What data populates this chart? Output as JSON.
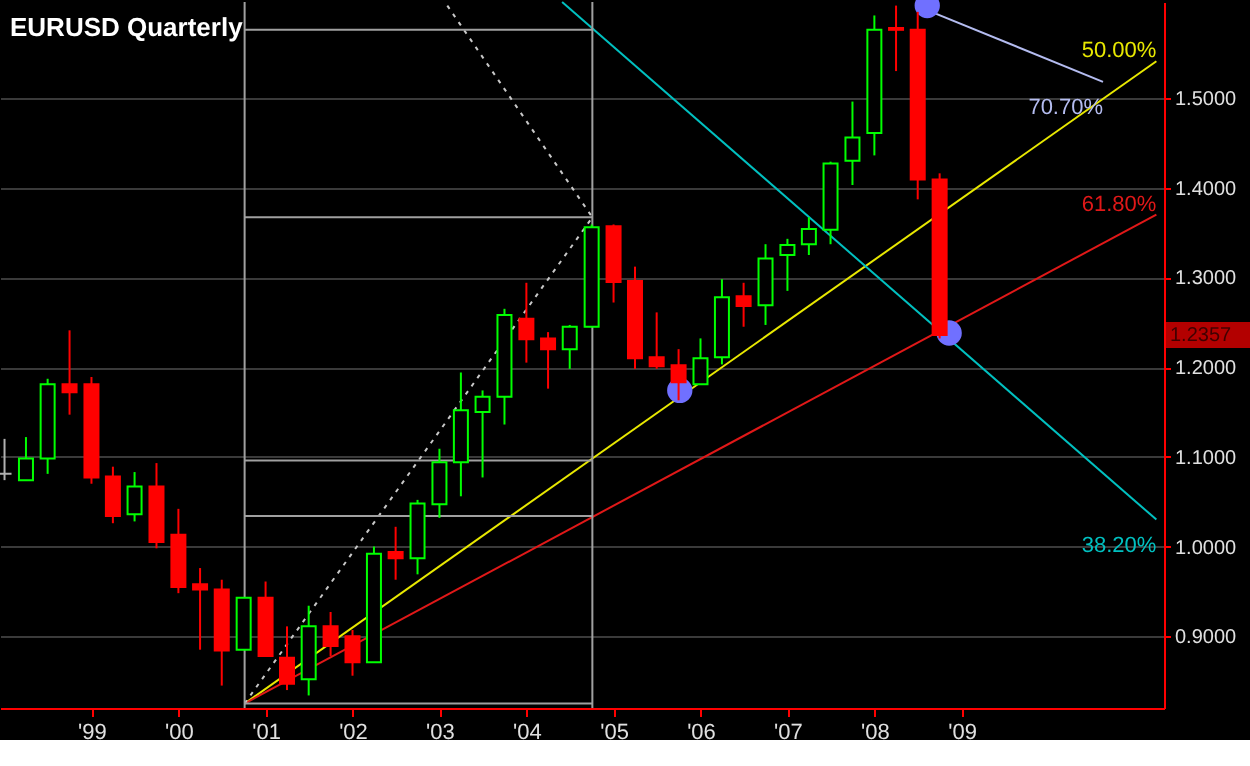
{
  "chart_data": {
    "type": "candlestick",
    "title": "EURUSD Quarterly",
    "x": [
      "1998-01",
      "1998-04",
      "1998-07",
      "1998-10",
      "1999-01",
      "1999-04",
      "1999-07",
      "1999-10",
      "2000-01",
      "2000-04",
      "2000-07",
      "2000-10",
      "2001-01",
      "2001-04",
      "2001-07",
      "2001-10",
      "2002-01",
      "2002-04",
      "2002-07",
      "2002-10",
      "2003-01",
      "2003-04",
      "2003-07",
      "2003-10",
      "2004-01",
      "2004-04",
      "2004-07",
      "2004-10",
      "2005-01",
      "2005-04",
      "2005-07",
      "2005-10",
      "2006-01",
      "2006-04",
      "2006-07",
      "2006-10",
      "2007-01",
      "2007-04",
      "2007-07",
      "2007-10",
      "2008-01",
      "2008-04",
      "2008-07",
      "2008-10"
    ],
    "ohlc": [
      [
        1.081,
        1.12,
        1.074,
        1.081
      ],
      [
        1.074,
        1.122,
        1.074,
        1.098
      ],
      [
        1.098,
        1.187,
        1.081,
        1.181
      ],
      [
        1.181,
        1.241,
        1.147,
        1.172
      ],
      [
        1.181,
        1.189,
        1.07,
        1.077
      ],
      [
        1.078,
        1.089,
        1.026,
        1.034
      ],
      [
        1.036,
        1.083,
        1.028,
        1.067
      ],
      [
        1.067,
        1.093,
        0.998,
        1.005
      ],
      [
        1.013,
        1.042,
        0.948,
        0.955
      ],
      [
        0.958,
        0.976,
        0.885,
        0.952
      ],
      [
        0.952,
        0.963,
        0.845,
        0.884
      ],
      [
        0.885,
        0.943,
        0.885,
        0.943
      ],
      [
        0.943,
        0.961,
        0.878,
        0.878
      ],
      [
        0.876,
        0.911,
        0.84,
        0.847
      ],
      [
        0.852,
        0.934,
        0.834,
        0.911
      ],
      [
        0.911,
        0.927,
        0.878,
        0.889
      ],
      [
        0.9,
        0.907,
        0.856,
        0.871
      ],
      [
        0.871,
        1.0,
        0.871,
        0.992
      ],
      [
        0.994,
        1.022,
        0.963,
        0.987
      ],
      [
        0.987,
        1.052,
        0.969,
        1.048
      ],
      [
        1.047,
        1.109,
        1.032,
        1.094
      ],
      [
        1.094,
        1.194,
        1.056,
        1.152
      ],
      [
        1.15,
        1.174,
        1.077,
        1.167
      ],
      [
        1.167,
        1.265,
        1.136,
        1.258
      ],
      [
        1.254,
        1.294,
        1.205,
        1.231
      ],
      [
        1.232,
        1.239,
        1.176,
        1.22
      ],
      [
        1.22,
        1.247,
        1.198,
        1.245
      ],
      [
        1.245,
        1.359,
        1.245,
        1.356
      ],
      [
        1.357,
        1.359,
        1.272,
        1.295
      ],
      [
        1.296,
        1.312,
        1.198,
        1.21
      ],
      [
        1.211,
        1.261,
        1.198,
        1.201
      ],
      [
        1.202,
        1.22,
        1.163,
        1.183
      ],
      [
        1.181,
        1.232,
        1.181,
        1.21
      ],
      [
        1.211,
        1.298,
        1.203,
        1.278
      ],
      [
        1.279,
        1.294,
        1.245,
        1.268
      ],
      [
        1.269,
        1.337,
        1.247,
        1.321
      ],
      [
        1.325,
        1.343,
        1.285,
        1.336
      ],
      [
        1.337,
        1.367,
        1.325,
        1.354
      ],
      [
        1.353,
        1.429,
        1.337,
        1.427
      ],
      [
        1.43,
        1.496,
        1.403,
        1.456
      ],
      [
        1.461,
        1.592,
        1.436,
        1.576
      ],
      [
        1.578,
        1.603,
        1.53,
        1.576
      ],
      [
        1.576,
        1.596,
        1.387,
        1.409
      ],
      [
        1.409,
        1.416,
        1.232,
        1.2357
      ]
    ],
    "colors": [
      "#b0b0b0",
      "#00ff00",
      "#00ff00",
      "#ff0000",
      "#ff0000",
      "#ff0000",
      "#00ff00",
      "#ff0000",
      "#ff0000",
      "#ff0000",
      "#ff0000",
      "#00ff00",
      "#ff0000",
      "#ff0000",
      "#00ff00",
      "#ff0000",
      "#ff0000",
      "#00ff00",
      "#ff0000",
      "#00ff00",
      "#00ff00",
      "#00ff00",
      "#00ff00",
      "#00ff00",
      "#ff0000",
      "#ff0000",
      "#00ff00",
      "#00ff00",
      "#ff0000",
      "#ff0000",
      "#ff0000",
      "#ff0000",
      "#00ff00",
      "#00ff00",
      "#ff0000",
      "#00ff00",
      "#00ff00",
      "#00ff00",
      "#00ff00",
      "#00ff00",
      "#00ff00",
      "#ff0000",
      "#ff0000",
      "#ff0000"
    ],
    "series": [
      {
        "type": "line",
        "name": "70.70%",
        "color": "#b4bcf0",
        "x": [
          "2008-07-12",
          "2010-08-18"
        ],
        "values": [
          1.601,
          1.518
        ]
      },
      {
        "type": "line",
        "name": "50.00%",
        "color": "#e8e800",
        "x": [
          "2000-10-05",
          "2011-03-30"
        ],
        "values": [
          0.825,
          1.541
        ]
      },
      {
        "type": "line",
        "name": "61.80%",
        "color": "#e01818",
        "x": [
          "2000-10-05",
          "2011-03-30"
        ],
        "values": [
          0.825,
          1.37
        ]
      },
      {
        "type": "line",
        "name": "38.20%",
        "color": "#00c0c0",
        "x": [
          "2004-05-30",
          "2011-03-30"
        ],
        "values": [
          1.607,
          1.03
        ]
      },
      {
        "type": "line",
        "color": "#c8c8c8",
        "line_style": "dotted",
        "x": [
          "2000-10-05",
          "2004-10-04"
        ],
        "values": [
          0.825,
          1.367
        ]
      },
      {
        "type": "line",
        "color": "#c8c8c8",
        "line_style": "dotted",
        "x": [
          "2003-02-03",
          "2004-10-04"
        ],
        "values": [
          1.603,
          1.367
        ]
      },
      {
        "type": "line",
        "color": "#a0a0a0",
        "x": [
          "2000-10-05",
          "2004-10-04"
        ],
        "values": [
          1.576,
          1.576
        ]
      },
      {
        "type": "line",
        "color": "#a0a0a0",
        "x": [
          "2000-10-05",
          "2004-10-04"
        ],
        "values": [
          1.367,
          1.367
        ]
      },
      {
        "type": "line",
        "color": "#a0a0a0",
        "x": [
          "2000-10-05",
          "2004-10-04"
        ],
        "values": [
          1.096,
          1.096
        ]
      },
      {
        "type": "line",
        "color": "#a0a0a0",
        "x": [
          "2000-10-05",
          "2004-10-04"
        ],
        "values": [
          1.034,
          1.034
        ]
      },
      {
        "type": "line",
        "color": "#a0a0a0",
        "x": [
          "2000-10-05",
          "2004-10-04"
        ],
        "values": [
          0.825,
          0.825
        ]
      },
      {
        "type": "scatter",
        "color": "#7070ff",
        "marker": "circle",
        "x": [
          "2005-10-06",
          "2008-11-10",
          "2008-08-10"
        ],
        "values": [
          1.174,
          1.238,
          1.603
        ]
      }
    ],
    "ref_lines": [
      {
        "axis": "x",
        "value": "2000-10-05",
        "color": "#a0a0a0"
      },
      {
        "axis": "x",
        "value": "2004-10-04",
        "color": "#a0a0a0"
      }
    ],
    "annotations": [
      "1.2357"
    ],
    "xlim": [
      "1997-12-13",
      "2011-05-01"
    ],
    "ylim": [
      0.82,
      1.607
    ],
    "xticks": [
      {
        "value": "1999-01",
        "label": "'99"
      },
      {
        "value": "2000-01",
        "label": "'00"
      },
      {
        "value": "2001-01",
        "label": "'01"
      },
      {
        "value": "2002-01",
        "label": "'02"
      },
      {
        "value": "2003-01",
        "label": "'03"
      },
      {
        "value": "2004-01",
        "label": "'04"
      },
      {
        "value": "2005-01",
        "label": "'05"
      },
      {
        "value": "2006-01",
        "label": "'06"
      },
      {
        "value": "2007-01",
        "label": "'07"
      },
      {
        "value": "2008-01",
        "label": "'08"
      },
      {
        "value": "2009-01",
        "label": "'09"
      }
    ],
    "yticks": [
      {
        "value": 0.9,
        "label": "0.9000"
      },
      {
        "value": 1.0,
        "label": "1.0000"
      },
      {
        "value": 1.1,
        "label": "1.1000"
      },
      {
        "value": 1.2,
        "label": "1.2000"
      },
      {
        "value": 1.3,
        "label": "1.3000"
      },
      {
        "value": 1.4,
        "label": "1.4000"
      },
      {
        "value": 1.5,
        "label": "1.5000"
      }
    ],
    "grid": "y"
  }
}
